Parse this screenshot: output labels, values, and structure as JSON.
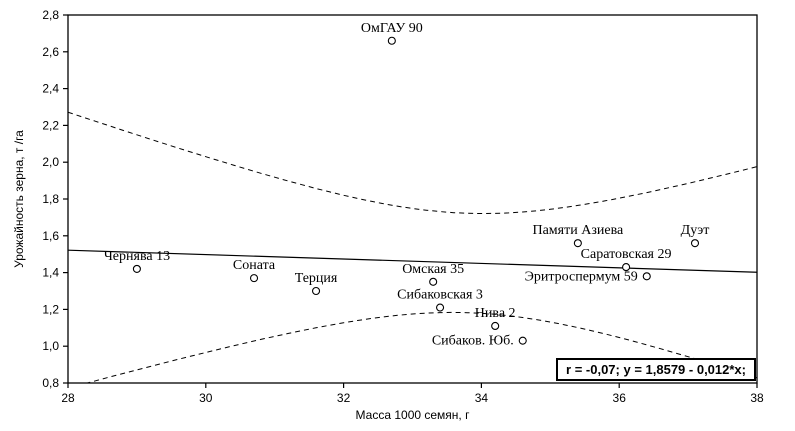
{
  "figure": {
    "background": "#ffffff",
    "line_color": "#000000"
  },
  "chart_data": {
    "type": "scatter",
    "title": "",
    "xlabel": "Масса 1000 семян, г",
    "ylabel": "Урожайность зерна, т /га",
    "xlim": [
      28,
      38
    ],
    "ylim": [
      0.8,
      2.8
    ],
    "grid": false,
    "legend": null,
    "x_ticks": [
      28,
      30,
      32,
      34,
      36,
      38
    ],
    "x_tick_labels": [
      "28",
      "30",
      "32",
      "34",
      "36",
      "38"
    ],
    "y_ticks": [
      0.8,
      1.0,
      1.2,
      1.4,
      1.6,
      1.8,
      2.0,
      2.2,
      2.4,
      2.6,
      2.8
    ],
    "y_tick_labels": [
      "0,8",
      "1,0",
      "1,2",
      "1,4",
      "1,6",
      "1,8",
      "2,0",
      "2,2",
      "2,4",
      "2,6",
      "2,8"
    ],
    "points": [
      {
        "label": "ОмГАУ 90",
        "x": 32.7,
        "y": 2.66,
        "label_pos": "above"
      },
      {
        "label": "Чернява 13",
        "x": 29.0,
        "y": 1.42,
        "label_pos": "above"
      },
      {
        "label": "Соната",
        "x": 30.7,
        "y": 1.37,
        "label_pos": "above"
      },
      {
        "label": "Терция",
        "x": 31.6,
        "y": 1.3,
        "label_pos": "above"
      },
      {
        "label": "Омская 35",
        "x": 33.3,
        "y": 1.35,
        "label_pos": "above"
      },
      {
        "label": "Сибаковская 3",
        "x": 33.4,
        "y": 1.21,
        "label_pos": "above"
      },
      {
        "label": "Нива 2",
        "x": 34.2,
        "y": 1.11,
        "label_pos": "above"
      },
      {
        "label": "Сибаков. Юб.",
        "x": 34.6,
        "y": 1.03,
        "label_pos": "left"
      },
      {
        "label": "Памяти Азиева",
        "x": 35.4,
        "y": 1.56,
        "label_pos": "above"
      },
      {
        "label": "Саратовская 29",
        "x": 36.1,
        "y": 1.43,
        "label_pos": "above"
      },
      {
        "label": "Эритроспермум 59",
        "x": 36.4,
        "y": 1.38,
        "label_pos": "left"
      },
      {
        "label": "Дуэт",
        "x": 37.1,
        "y": 1.56,
        "label_pos": "above"
      }
    ],
    "regression": {
      "intercept": 1.8579,
      "slope": -0.012,
      "r": -0.07,
      "label": "r = -0,07; y = 1,8579 - 0,012*x;"
    },
    "confidence_band": {
      "x_mean": 33.8,
      "d0": 0.27,
      "b": 0.01455
    }
  }
}
